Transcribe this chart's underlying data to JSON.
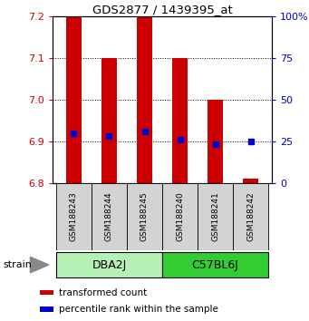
{
  "title": "GDS2877 / 1439395_at",
  "samples": [
    "GSM188243",
    "GSM188244",
    "GSM188245",
    "GSM188240",
    "GSM188241",
    "GSM188242"
  ],
  "strains": [
    {
      "name": "DBA2J",
      "indices": [
        0,
        1,
        2
      ]
    },
    {
      "name": "C57BL6J",
      "indices": [
        3,
        4,
        5
      ]
    }
  ],
  "ylim_left": [
    6.8,
    7.2
  ],
  "ylim_right": [
    0,
    100
  ],
  "yticks_left": [
    6.8,
    6.9,
    7.0,
    7.1,
    7.2
  ],
  "yticks_right": [
    0,
    25,
    50,
    75,
    100
  ],
  "bar_base": 6.8,
  "transformed_counts": [
    7.2,
    7.1,
    7.2,
    7.1,
    7.0,
    6.81
  ],
  "percentile_ranks": [
    30,
    28,
    31,
    26,
    23,
    25
  ],
  "bar_color": "#cc0000",
  "blue_color": "#0000cc",
  "axis_color_left": "#cc0000",
  "axis_color_right": "#0000cc",
  "bar_width": 0.45,
  "legend_items": [
    {
      "color": "#cc0000",
      "label": "transformed count"
    },
    {
      "color": "#0000cc",
      "label": "percentile rank within the sample"
    }
  ],
  "strain_dba_color": "#b5f0b5",
  "strain_c57_color": "#32cd32",
  "sample_box_color": "#d3d3d3"
}
